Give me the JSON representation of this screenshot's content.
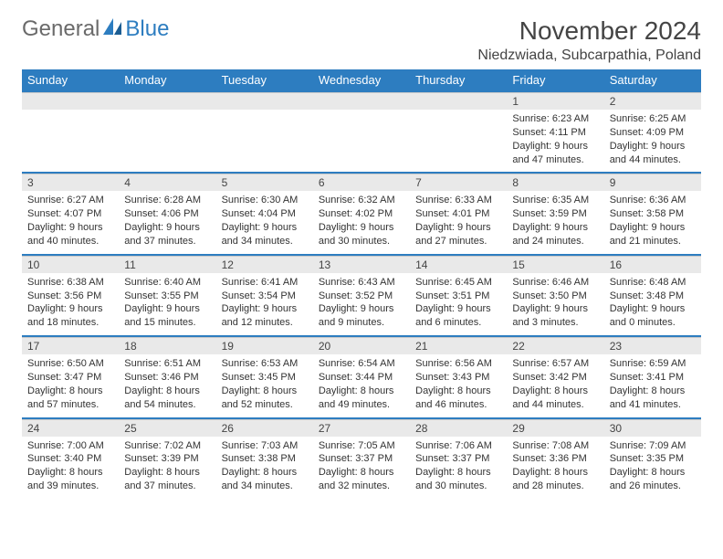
{
  "brand": {
    "text1": "General",
    "text2": "Blue"
  },
  "title": "November 2024",
  "location": "Niedzwiada, Subcarpathia, Poland",
  "colors": {
    "accent": "#2d7dc0",
    "dayHeader": "#e9e9e9",
    "text": "#333333"
  },
  "daysOfWeek": [
    "Sunday",
    "Monday",
    "Tuesday",
    "Wednesday",
    "Thursday",
    "Friday",
    "Saturday"
  ],
  "weeks": [
    [
      null,
      null,
      null,
      null,
      null,
      {
        "n": "1",
        "sr": "Sunrise: 6:23 AM",
        "ss": "Sunset: 4:11 PM",
        "d1": "Daylight: 9 hours",
        "d2": "and 47 minutes."
      },
      {
        "n": "2",
        "sr": "Sunrise: 6:25 AM",
        "ss": "Sunset: 4:09 PM",
        "d1": "Daylight: 9 hours",
        "d2": "and 44 minutes."
      }
    ],
    [
      {
        "n": "3",
        "sr": "Sunrise: 6:27 AM",
        "ss": "Sunset: 4:07 PM",
        "d1": "Daylight: 9 hours",
        "d2": "and 40 minutes."
      },
      {
        "n": "4",
        "sr": "Sunrise: 6:28 AM",
        "ss": "Sunset: 4:06 PM",
        "d1": "Daylight: 9 hours",
        "d2": "and 37 minutes."
      },
      {
        "n": "5",
        "sr": "Sunrise: 6:30 AM",
        "ss": "Sunset: 4:04 PM",
        "d1": "Daylight: 9 hours",
        "d2": "and 34 minutes."
      },
      {
        "n": "6",
        "sr": "Sunrise: 6:32 AM",
        "ss": "Sunset: 4:02 PM",
        "d1": "Daylight: 9 hours",
        "d2": "and 30 minutes."
      },
      {
        "n": "7",
        "sr": "Sunrise: 6:33 AM",
        "ss": "Sunset: 4:01 PM",
        "d1": "Daylight: 9 hours",
        "d2": "and 27 minutes."
      },
      {
        "n": "8",
        "sr": "Sunrise: 6:35 AM",
        "ss": "Sunset: 3:59 PM",
        "d1": "Daylight: 9 hours",
        "d2": "and 24 minutes."
      },
      {
        "n": "9",
        "sr": "Sunrise: 6:36 AM",
        "ss": "Sunset: 3:58 PM",
        "d1": "Daylight: 9 hours",
        "d2": "and 21 minutes."
      }
    ],
    [
      {
        "n": "10",
        "sr": "Sunrise: 6:38 AM",
        "ss": "Sunset: 3:56 PM",
        "d1": "Daylight: 9 hours",
        "d2": "and 18 minutes."
      },
      {
        "n": "11",
        "sr": "Sunrise: 6:40 AM",
        "ss": "Sunset: 3:55 PM",
        "d1": "Daylight: 9 hours",
        "d2": "and 15 minutes."
      },
      {
        "n": "12",
        "sr": "Sunrise: 6:41 AM",
        "ss": "Sunset: 3:54 PM",
        "d1": "Daylight: 9 hours",
        "d2": "and 12 minutes."
      },
      {
        "n": "13",
        "sr": "Sunrise: 6:43 AM",
        "ss": "Sunset: 3:52 PM",
        "d1": "Daylight: 9 hours",
        "d2": "and 9 minutes."
      },
      {
        "n": "14",
        "sr": "Sunrise: 6:45 AM",
        "ss": "Sunset: 3:51 PM",
        "d1": "Daylight: 9 hours",
        "d2": "and 6 minutes."
      },
      {
        "n": "15",
        "sr": "Sunrise: 6:46 AM",
        "ss": "Sunset: 3:50 PM",
        "d1": "Daylight: 9 hours",
        "d2": "and 3 minutes."
      },
      {
        "n": "16",
        "sr": "Sunrise: 6:48 AM",
        "ss": "Sunset: 3:48 PM",
        "d1": "Daylight: 9 hours",
        "d2": "and 0 minutes."
      }
    ],
    [
      {
        "n": "17",
        "sr": "Sunrise: 6:50 AM",
        "ss": "Sunset: 3:47 PM",
        "d1": "Daylight: 8 hours",
        "d2": "and 57 minutes."
      },
      {
        "n": "18",
        "sr": "Sunrise: 6:51 AM",
        "ss": "Sunset: 3:46 PM",
        "d1": "Daylight: 8 hours",
        "d2": "and 54 minutes."
      },
      {
        "n": "19",
        "sr": "Sunrise: 6:53 AM",
        "ss": "Sunset: 3:45 PM",
        "d1": "Daylight: 8 hours",
        "d2": "and 52 minutes."
      },
      {
        "n": "20",
        "sr": "Sunrise: 6:54 AM",
        "ss": "Sunset: 3:44 PM",
        "d1": "Daylight: 8 hours",
        "d2": "and 49 minutes."
      },
      {
        "n": "21",
        "sr": "Sunrise: 6:56 AM",
        "ss": "Sunset: 3:43 PM",
        "d1": "Daylight: 8 hours",
        "d2": "and 46 minutes."
      },
      {
        "n": "22",
        "sr": "Sunrise: 6:57 AM",
        "ss": "Sunset: 3:42 PM",
        "d1": "Daylight: 8 hours",
        "d2": "and 44 minutes."
      },
      {
        "n": "23",
        "sr": "Sunrise: 6:59 AM",
        "ss": "Sunset: 3:41 PM",
        "d1": "Daylight: 8 hours",
        "d2": "and 41 minutes."
      }
    ],
    [
      {
        "n": "24",
        "sr": "Sunrise: 7:00 AM",
        "ss": "Sunset: 3:40 PM",
        "d1": "Daylight: 8 hours",
        "d2": "and 39 minutes."
      },
      {
        "n": "25",
        "sr": "Sunrise: 7:02 AM",
        "ss": "Sunset: 3:39 PM",
        "d1": "Daylight: 8 hours",
        "d2": "and 37 minutes."
      },
      {
        "n": "26",
        "sr": "Sunrise: 7:03 AM",
        "ss": "Sunset: 3:38 PM",
        "d1": "Daylight: 8 hours",
        "d2": "and 34 minutes."
      },
      {
        "n": "27",
        "sr": "Sunrise: 7:05 AM",
        "ss": "Sunset: 3:37 PM",
        "d1": "Daylight: 8 hours",
        "d2": "and 32 minutes."
      },
      {
        "n": "28",
        "sr": "Sunrise: 7:06 AM",
        "ss": "Sunset: 3:37 PM",
        "d1": "Daylight: 8 hours",
        "d2": "and 30 minutes."
      },
      {
        "n": "29",
        "sr": "Sunrise: 7:08 AM",
        "ss": "Sunset: 3:36 PM",
        "d1": "Daylight: 8 hours",
        "d2": "and 28 minutes."
      },
      {
        "n": "30",
        "sr": "Sunrise: 7:09 AM",
        "ss": "Sunset: 3:35 PM",
        "d1": "Daylight: 8 hours",
        "d2": "and 26 minutes."
      }
    ]
  ]
}
